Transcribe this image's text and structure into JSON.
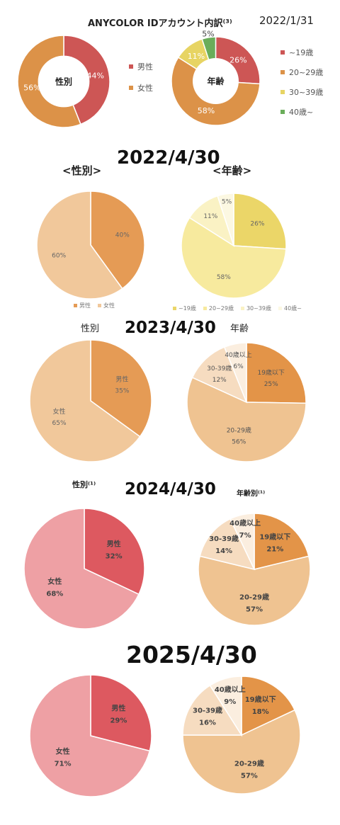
{
  "sections": {
    "s2022_01": {
      "header": "ANYCOLOR IDアカウント内訳⁽³⁾",
      "date": "2022/1/31",
      "gender_center": "性別",
      "age_center": "年齢",
      "gender_legend": [
        "男性",
        "女性"
      ],
      "age_legend": [
        "~19歳",
        "20~29歳",
        "30~39歳",
        "40歳~"
      ]
    },
    "s2022_04": {
      "date": "2022/4/30",
      "gender_title": "<性別>",
      "age_title": "<年齢>",
      "gender_legend": [
        "男性",
        "女性"
      ],
      "age_legend": [
        "~19歳",
        "20~29歳",
        "30~39歳",
        "40歳~"
      ]
    },
    "s2023": {
      "date": "2023/4/30",
      "gender_title": "性別",
      "age_title": "年齢"
    },
    "s2024": {
      "date": "2024/4/30",
      "gender_title": "性別⁽¹⁾",
      "age_title": "年齢別⁽¹⁾"
    },
    "s2025": {
      "date": "2025/4/30"
    }
  },
  "chart_data": [
    {
      "id": "gender_2022_01",
      "type": "pie",
      "donut": true,
      "center_label": "性別",
      "categories": [
        "男性",
        "女性"
      ],
      "values": [
        44,
        56
      ],
      "labels": [
        "44%",
        "56%"
      ],
      "colors": [
        "#cd5655",
        "#dc9248"
      ]
    },
    {
      "id": "age_2022_01",
      "type": "pie",
      "donut": true,
      "center_label": "年齢",
      "categories": [
        "~19歳",
        "20~29歳",
        "30~39歳",
        "40歳~"
      ],
      "values": [
        26,
        58,
        11,
        5
      ],
      "labels": [
        "26%",
        "58%",
        "11%",
        "5%"
      ],
      "colors": [
        "#cd5655",
        "#dc9248",
        "#e7d463",
        "#6aad5a"
      ]
    },
    {
      "id": "gender_2022_04",
      "type": "pie",
      "categories": [
        "男性",
        "女性"
      ],
      "values": [
        40,
        60
      ],
      "labels": [
        "40%",
        "60%"
      ],
      "colors": [
        "#e59b55",
        "#f1c89b"
      ]
    },
    {
      "id": "age_2022_04",
      "type": "pie",
      "categories": [
        "~19歳",
        "20~29歳",
        "30~39歳",
        "40歳~"
      ],
      "values": [
        26,
        58,
        11,
        5
      ],
      "labels": [
        "26%",
        "58%",
        "11%",
        "5%"
      ],
      "colors": [
        "#ebd668",
        "#f7ea9e",
        "#faf2c4",
        "#fcf8e2"
      ]
    },
    {
      "id": "gender_2023",
      "type": "pie",
      "categories": [
        "男性",
        "女性"
      ],
      "values": [
        35,
        65
      ],
      "labels": [
        "男性\n35%",
        "女性\n65%"
      ],
      "colors": [
        "#e59b55",
        "#f1c89b"
      ]
    },
    {
      "id": "age_2023",
      "type": "pie",
      "categories": [
        "19歳以下",
        "20-29歳",
        "30-39歳",
        "40歳以上"
      ],
      "values": [
        25,
        56,
        12,
        6
      ],
      "labels": [
        "19歳以下\n25%",
        "20-29歳\n56%",
        "30-39歳\n12%",
        "40歳以上\n6%"
      ],
      "colors": [
        "#e39448",
        "#efc391",
        "#f6dcc0",
        "#fbeedf"
      ]
    },
    {
      "id": "gender_2024",
      "type": "pie",
      "categories": [
        "男性",
        "女性"
      ],
      "values": [
        32,
        68
      ],
      "labels": [
        "男性\n32%",
        "女性\n68%"
      ],
      "colors": [
        "#dd5960",
        "#eea0a4"
      ]
    },
    {
      "id": "age_2024",
      "type": "pie",
      "categories": [
        "19歳以下",
        "20-29歳",
        "30-39歳",
        "40歳以上"
      ],
      "values": [
        21,
        57,
        14,
        7
      ],
      "labels": [
        "19歳以下\n21%",
        "20-29歳\n57%",
        "30-39歳\n14%",
        "40歳以上\n7%"
      ],
      "colors": [
        "#e39448",
        "#efc391",
        "#f6dcc0",
        "#fbeedf"
      ]
    },
    {
      "id": "gender_2025",
      "type": "pie",
      "categories": [
        "男性",
        "女性"
      ],
      "values": [
        29,
        71
      ],
      "labels": [
        "男性\n29%",
        "女性\n71%"
      ],
      "colors": [
        "#dd5960",
        "#eea0a4"
      ]
    },
    {
      "id": "age_2025",
      "type": "pie",
      "categories": [
        "19歳以下",
        "20-29歳",
        "30-39歳",
        "40歳以上"
      ],
      "values": [
        18,
        57,
        16,
        9
      ],
      "labels": [
        "19歳以下\n18%",
        "20-29歳\n57%",
        "30-39歳\n16%",
        "40歳以上\n9%"
      ],
      "colors": [
        "#e39448",
        "#efc391",
        "#f6dcc0",
        "#fbeedf"
      ]
    }
  ]
}
